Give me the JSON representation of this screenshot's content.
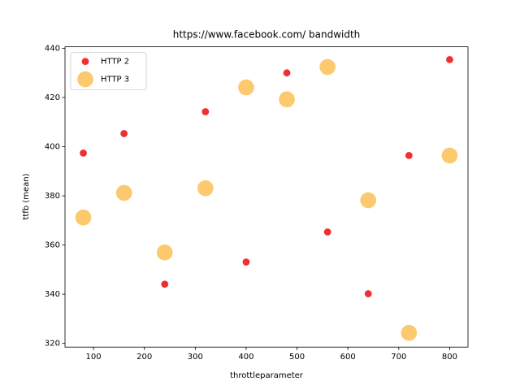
{
  "chart_data": {
    "type": "scatter",
    "title": "https://www.facebook.com/ bandwidth",
    "x_label": "throttleparameter",
    "y_label": "ttfb (mean)",
    "xlim": [
      44,
      836
    ],
    "ylim": [
      318.5,
      440.6
    ],
    "xticks": [
      100,
      200,
      300,
      400,
      500,
      600,
      700,
      800
    ],
    "yticks": [
      320,
      340,
      360,
      380,
      400,
      420,
      440
    ],
    "legend": "upper-left",
    "series": [
      {
        "name": "HTTP 2",
        "color": "#f03030",
        "marker_size": 40,
        "x": [
          80,
          160,
          240,
          320,
          400,
          480,
          560,
          640,
          720,
          800
        ],
        "values": [
          397.4,
          405.3,
          344.1,
          414.2,
          353.1,
          430,
          365.3,
          340.2,
          396.4,
          435.4
        ]
      },
      {
        "name": "HTTP 3",
        "color": "#fdc96f",
        "marker_size": 200,
        "x": [
          80,
          160,
          240,
          320,
          400,
          480,
          560,
          640,
          720,
          800
        ],
        "values": [
          371.2,
          381.2,
          357,
          383.1,
          424.1,
          419.2,
          432.4,
          378.2,
          324.3,
          396.4
        ]
      }
    ]
  }
}
